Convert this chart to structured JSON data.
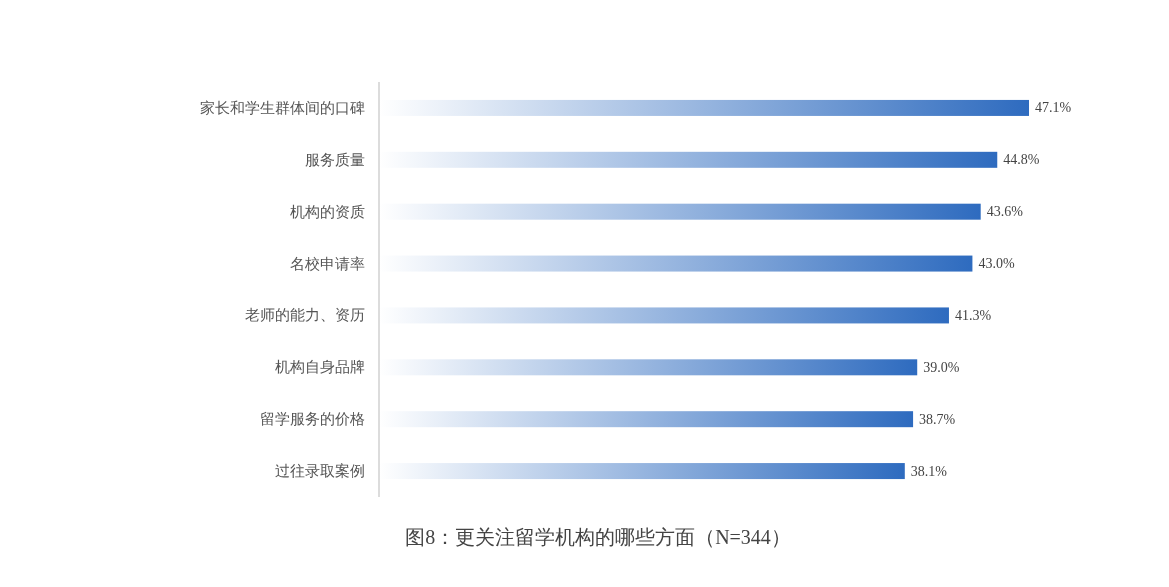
{
  "chart_data": {
    "type": "bar",
    "orientation": "horizontal",
    "title": "图8：更关注留学机构的哪些方面（N=344）",
    "categories": [
      "家长和学生群体间的口碑",
      "服务质量",
      "机构的资质",
      "名校申请率",
      "老师的能力、资历",
      "机构自身品牌",
      "留学服务的价格",
      "过往录取案例"
    ],
    "values": [
      47.1,
      44.8,
      43.6,
      43.0,
      41.3,
      39.0,
      38.7,
      38.1
    ],
    "value_labels": [
      "47.1%",
      "44.8%",
      "43.6%",
      "43.0%",
      "41.3%",
      "39.0%",
      "38.7%",
      "38.1%"
    ],
    "color": "#2e6bbf"
  }
}
